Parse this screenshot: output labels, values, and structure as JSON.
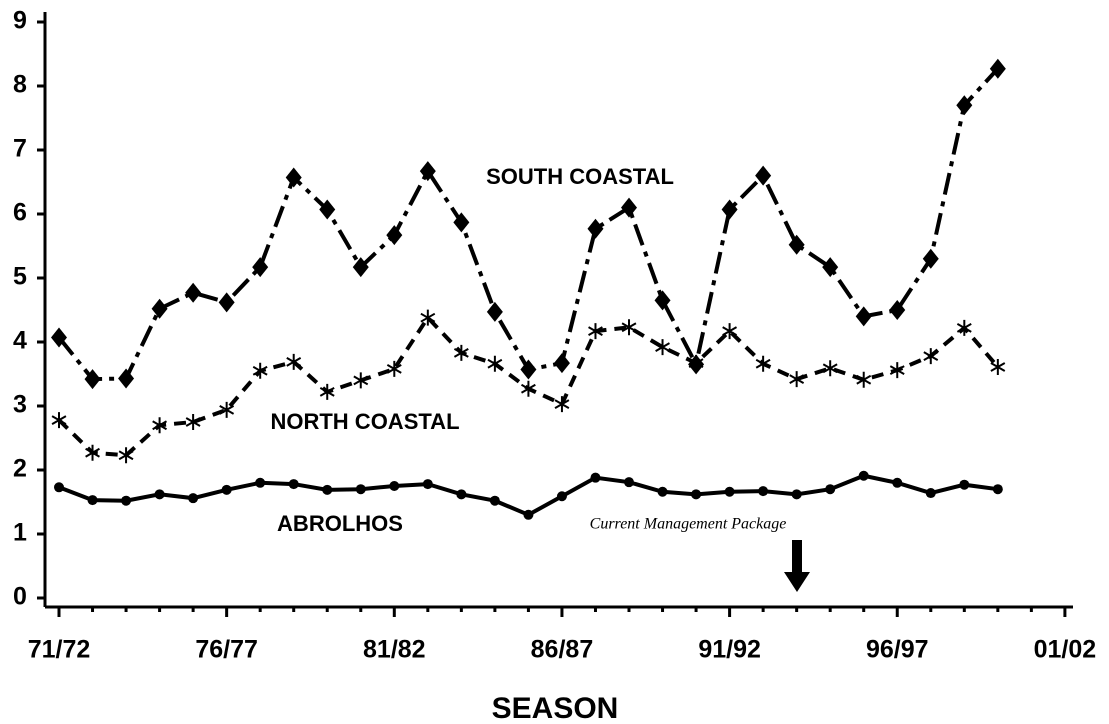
{
  "chart_data": {
    "type": "line",
    "x_label": "SEASON",
    "annotation": "Current Management Package",
    "categories": [
      "71/72",
      null,
      null,
      null,
      null,
      "76/77",
      null,
      null,
      null,
      null,
      "81/82",
      null,
      null,
      null,
      null,
      "86/87",
      null,
      null,
      null,
      null,
      "91/92",
      null,
      null,
      null,
      null,
      "96/97",
      null,
      null,
      null,
      null,
      "01/02"
    ],
    "ylim": [
      0,
      9
    ],
    "yticks": [
      0,
      1,
      2,
      3,
      4,
      5,
      6,
      7,
      8,
      9
    ],
    "series": [
      {
        "name": "SOUTH COASTAL",
        "color": "#000000",
        "marker": "diamond",
        "line_style": "dashdot",
        "values": [
          4.07,
          3.42,
          3.43,
          4.52,
          4.77,
          4.62,
          5.17,
          6.57,
          6.07,
          5.17,
          5.67,
          6.67,
          5.87,
          4.47,
          3.57,
          3.67,
          5.77,
          6.1,
          4.65,
          3.65,
          6.07,
          6.6,
          5.52,
          5.17,
          4.4,
          4.5,
          5.3,
          7.7,
          8.27,
          null,
          null
        ]
      },
      {
        "name": "NORTH COASTAL",
        "color": "#000000",
        "marker": "asterisk",
        "line_style": "dashed",
        "values": [
          2.78,
          2.27,
          2.23,
          2.7,
          2.75,
          2.94,
          3.55,
          3.69,
          3.22,
          3.4,
          3.58,
          4.38,
          3.83,
          3.66,
          3.27,
          3.03,
          4.17,
          4.23,
          3.92,
          3.67,
          4.17,
          3.66,
          3.42,
          3.59,
          3.41,
          3.56,
          3.78,
          4.22,
          3.61,
          null,
          null
        ]
      },
      {
        "name": "ABROLHOS",
        "color": "#000000",
        "marker": "circle",
        "line_style": "solid",
        "values": [
          1.73,
          1.53,
          1.52,
          1.62,
          1.56,
          1.69,
          1.8,
          1.78,
          1.69,
          1.7,
          1.75,
          1.78,
          1.62,
          1.52,
          1.3,
          1.59,
          1.88,
          1.81,
          1.66,
          1.62,
          1.66,
          1.67,
          1.62,
          1.7,
          1.91,
          1.8,
          1.64,
          1.77,
          1.7,
          null,
          null
        ]
      }
    ]
  }
}
